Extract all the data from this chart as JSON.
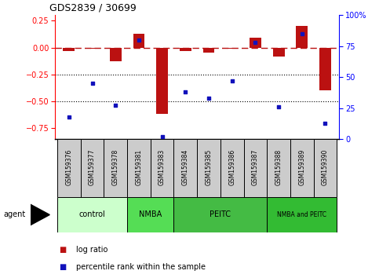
{
  "title": "GDS2839 / 30699",
  "samples": [
    "GSM159376",
    "GSM159377",
    "GSM159378",
    "GSM159381",
    "GSM159383",
    "GSM159384",
    "GSM159385",
    "GSM159386",
    "GSM159387",
    "GSM159388",
    "GSM159389",
    "GSM159390"
  ],
  "log_ratio": [
    -0.03,
    -0.01,
    -0.13,
    0.13,
    -0.62,
    -0.03,
    -0.05,
    -0.01,
    0.09,
    -0.08,
    0.2,
    -0.4
  ],
  "percentile_rank": [
    18,
    45,
    27,
    80,
    2,
    38,
    33,
    47,
    78,
    26,
    85,
    13
  ],
  "ylim_left": [
    -0.85,
    0.3
  ],
  "ylim_right": [
    0,
    100
  ],
  "yticks_left": [
    0.25,
    0.0,
    -0.25,
    -0.5,
    -0.75
  ],
  "yticks_right": [
    100,
    75,
    50,
    25,
    0
  ],
  "hlines": [
    -0.25,
    -0.5
  ],
  "bar_color": "#bb1111",
  "dot_color": "#1111bb",
  "dash_color": "#bb1111",
  "groups": [
    {
      "label": "control",
      "start": 0,
      "end": 3,
      "color": "#ccffcc"
    },
    {
      "label": "NMBA",
      "start": 3,
      "end": 5,
      "color": "#55dd55"
    },
    {
      "label": "PEITC",
      "start": 5,
      "end": 9,
      "color": "#44bb44"
    },
    {
      "label": "NMBA and PEITC",
      "start": 9,
      "end": 12,
      "color": "#33bb33"
    }
  ],
  "legend_bar_color": "#bb1111",
  "legend_dot_color": "#1111bb",
  "legend_bar_label": "log ratio",
  "legend_dot_label": "percentile rank within the sample"
}
